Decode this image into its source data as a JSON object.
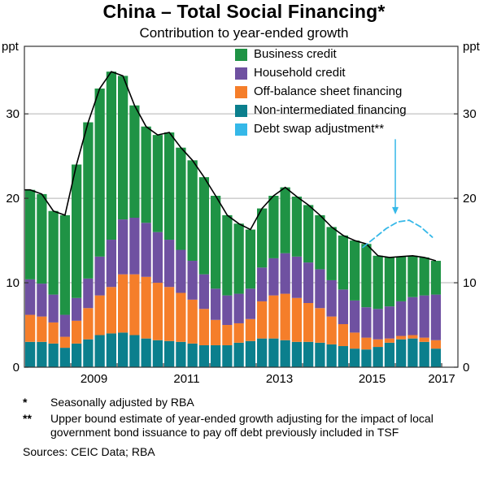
{
  "title": "China – Total Social Financing*",
  "subtitle": "Contribution to year-ended growth",
  "footnotes": [
    {
      "marker": "*",
      "text": "Seasonally adjusted by RBA"
    },
    {
      "marker": "**",
      "text": "Upper bound estimate of year-ended growth adjusting for the impact of local government bond issuance to pay off debt previously included in TSF"
    }
  ],
  "sources": "Sources: CEIC Data; RBA",
  "chart_data": {
    "type": "bar",
    "stacked": true,
    "title": "China – Total Social Financing*",
    "subtitle": "Contribution to year-ended growth",
    "ylabel": "ppt",
    "ylim": [
      0,
      38
    ],
    "yticks": [
      0,
      10,
      20,
      30
    ],
    "xlim": [
      2008.0,
      2017.35
    ],
    "xticks": [
      2009,
      2011,
      2013,
      2015,
      2017
    ],
    "bar_start": 2008.125,
    "bar_step": 0.25,
    "grid": true,
    "legend_position": "top-right",
    "categories": [
      "2008 Q1",
      "2008 Q2",
      "2008 Q3",
      "2008 Q4",
      "2009 Q1",
      "2009 Q2",
      "2009 Q3",
      "2009 Q4",
      "2010 Q1",
      "2010 Q2",
      "2010 Q3",
      "2010 Q4",
      "2011 Q1",
      "2011 Q2",
      "2011 Q3",
      "2011 Q4",
      "2012 Q1",
      "2012 Q2",
      "2012 Q3",
      "2012 Q4",
      "2013 Q1",
      "2013 Q2",
      "2013 Q3",
      "2013 Q4",
      "2014 Q1",
      "2014 Q2",
      "2014 Q3",
      "2014 Q4",
      "2015 Q1",
      "2015 Q2",
      "2015 Q3",
      "2015 Q4",
      "2016 Q1",
      "2016 Q2",
      "2016 Q3",
      "2016 Q4"
    ],
    "series": [
      {
        "name": "Business credit",
        "color": "#1f9345",
        "values": [
          10.6,
          10.6,
          9.9,
          11.8,
          15.8,
          18.5,
          19.9,
          19.9,
          17.0,
          13.3,
          11.4,
          11.5,
          12.7,
          12.1,
          11.9,
          11.5,
          11.0,
          9.5,
          8.3,
          7.0,
          7.0,
          7.4,
          7.8,
          7.1,
          6.8,
          6.4,
          6.3,
          6.4,
          7.1,
          7.5,
          6.3,
          5.8,
          5.3,
          4.9,
          4.5,
          4.0
        ]
      },
      {
        "name": "Household credit",
        "color": "#6f51a1",
        "values": [
          4.2,
          3.9,
          3.3,
          2.6,
          2.7,
          3.5,
          4.6,
          5.6,
          6.5,
          6.7,
          6.4,
          6.0,
          5.6,
          5.1,
          4.6,
          4.1,
          3.7,
          3.5,
          3.5,
          3.6,
          4.0,
          4.4,
          4.8,
          4.9,
          4.8,
          4.6,
          4.3,
          4.1,
          3.8,
          3.6,
          3.6,
          3.8,
          4.1,
          4.5,
          5.0,
          5.4
        ]
      },
      {
        "name": "Off-balance sheet financing",
        "color": "#f57e2a",
        "values": [
          3.2,
          3.0,
          2.5,
          1.3,
          2.7,
          3.7,
          4.7,
          5.5,
          6.9,
          7.2,
          7.3,
          6.8,
          6.4,
          5.8,
          5.2,
          4.3,
          3.0,
          2.4,
          2.3,
          2.6,
          4.4,
          5.1,
          5.5,
          5.2,
          4.6,
          4.1,
          3.3,
          2.6,
          1.9,
          1.4,
          0.9,
          0.5,
          0.4,
          0.4,
          0.5,
          1.0
        ]
      },
      {
        "name": "Non-intermediated financing",
        "color": "#0b7f8d",
        "values": [
          3.0,
          3.0,
          2.8,
          2.3,
          2.8,
          3.3,
          3.8,
          4.0,
          4.1,
          3.8,
          3.4,
          3.2,
          3.1,
          3.0,
          2.8,
          2.6,
          2.6,
          2.6,
          2.9,
          3.1,
          3.4,
          3.4,
          3.2,
          3.0,
          3.0,
          2.9,
          2.7,
          2.5,
          2.2,
          2.1,
          2.4,
          2.9,
          3.3,
          3.4,
          3.0,
          2.2
        ]
      }
    ],
    "stack_order_bottom_to_top": [
      "Non-intermediated financing",
      "Off-balance sheet financing",
      "Household credit",
      "Business credit"
    ],
    "total_line": {
      "name": "Total year-ended growth",
      "color": "#000000",
      "values": [
        21.0,
        20.5,
        18.5,
        18.0,
        24.0,
        29.0,
        33.0,
        35.0,
        34.5,
        31.0,
        28.5,
        27.5,
        27.8,
        26.0,
        24.5,
        22.5,
        20.3,
        18.0,
        17.0,
        16.3,
        18.8,
        20.3,
        21.3,
        20.2,
        19.2,
        18.0,
        16.6,
        15.6,
        15.0,
        14.6,
        13.2,
        13.0,
        13.1,
        13.2,
        13.0,
        12.6
      ]
    },
    "debt_swap": {
      "name": "Debt swap adjustment**",
      "color": "#35b8e8",
      "dashed": true,
      "x": [
        2015.3,
        2015.55,
        2015.8,
        2016.05,
        2016.3,
        2016.55,
        2016.8
      ],
      "values": [
        14.2,
        15.3,
        16.4,
        17.2,
        17.4,
        16.6,
        15.4
      ]
    },
    "annotation_arrow": {
      "x": 2016.0,
      "from_y": 27.0,
      "to_y": 18.1,
      "color": "#35b8e8"
    }
  }
}
